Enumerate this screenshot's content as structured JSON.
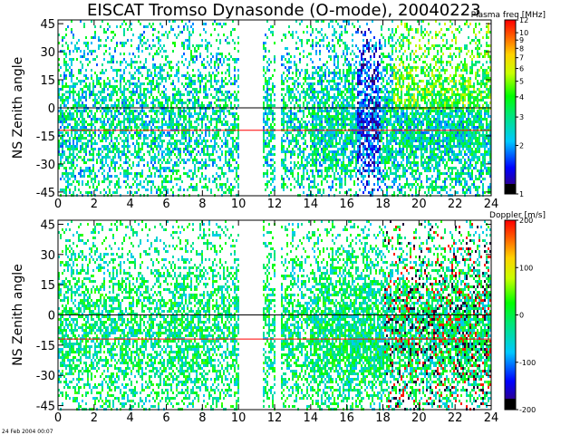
{
  "title": "EISCAT Tromso Dynasonde (O-mode),  20040223",
  "footer_stamp": "24 Feb 2004 00:07",
  "chart_data": [
    {
      "type": "heatmap",
      "panel": "top",
      "ylabel": "NS Zenith angle",
      "xlim": [
        0,
        24
      ],
      "ylim": [
        -47,
        47
      ],
      "xticks": [
        "0",
        "2",
        "4",
        "6",
        "8",
        "10",
        "12",
        "14",
        "16",
        "18",
        "20",
        "22",
        "24"
      ],
      "yticks": [
        "45",
        "30",
        "15",
        "0",
        "-15",
        "-30",
        "-45"
      ],
      "colorbar": {
        "title": "Plasma freq [MHz]",
        "scale": "log",
        "range": [
          1,
          12
        ],
        "ticks": [
          "12",
          "10",
          "9",
          "8",
          "7",
          "6",
          "5",
          "4",
          "3",
          "2",
          "1"
        ]
      },
      "reference_lines": [
        {
          "y": 0,
          "color": "#000000"
        },
        {
          "y": -12,
          "color": "#ff0000"
        }
      ],
      "data_gaps_hours": [
        [
          10.0,
          11.3
        ],
        [
          12.0,
          12.3
        ]
      ]
    },
    {
      "type": "heatmap",
      "panel": "bottom",
      "ylabel": "NS Zenith angle",
      "xlim": [
        0,
        24
      ],
      "ylim": [
        -47,
        47
      ],
      "xticks": [
        "0",
        "2",
        "4",
        "6",
        "8",
        "10",
        "12",
        "14",
        "16",
        "18",
        "20",
        "22",
        "24"
      ],
      "yticks": [
        "45",
        "30",
        "15",
        "0",
        "-15",
        "-30",
        "-45"
      ],
      "colorbar": {
        "title": "Doppler [m/s]",
        "scale": "linear",
        "range": [
          -200,
          200
        ],
        "ticks": [
          "200",
          "100",
          "0",
          "-100",
          "-200"
        ]
      },
      "reference_lines": [
        {
          "y": 0,
          "color": "#000000"
        },
        {
          "y": -12,
          "color": "#ff0000"
        }
      ],
      "data_gaps_hours": [
        [
          10.0,
          11.3
        ],
        [
          12.0,
          12.3
        ]
      ]
    }
  ]
}
